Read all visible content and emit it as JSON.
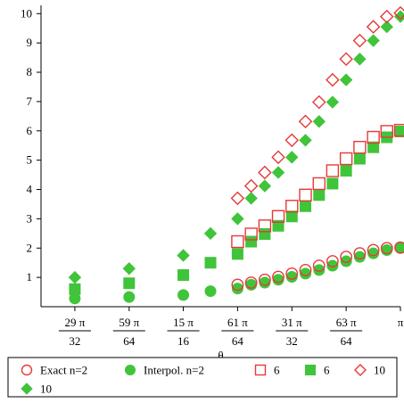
{
  "chart_data": {
    "type": "scatter",
    "xlabel": "θ",
    "ylabel": "",
    "title": "",
    "x": [
      2.8471,
      2.8962,
      2.9452,
      2.9943,
      3.0434,
      3.068,
      3.0925,
      3.1048,
      3.1171,
      3.1293,
      3.1416
    ],
    "x_ticks": [
      {
        "value": 2.8471,
        "num": "29 π",
        "den": "32"
      },
      {
        "value": 2.8962,
        "num": "59 π",
        "den": "64"
      },
      {
        "value": 2.9452,
        "num": "15 π",
        "den": "16"
      },
      {
        "value": 2.9943,
        "num": "61 π",
        "den": "64"
      },
      {
        "value": 3.0434,
        "num": "31 π",
        "den": "32"
      },
      {
        "value": 3.0925,
        "num": "63 π",
        "den": "64"
      },
      {
        "value": 3.1416,
        "num": "π",
        "den": ""
      }
    ],
    "y_ticks": [
      {
        "value": 1,
        "label": "1"
      },
      {
        "value": 2,
        "label": "2"
      },
      {
        "value": 3,
        "label": "3"
      },
      {
        "value": 4,
        "label": "4"
      },
      {
        "value": 5,
        "label": "5"
      },
      {
        "value": 6,
        "label": "6"
      },
      {
        "value": 7,
        "label": "7"
      },
      {
        "value": 8,
        "label": "8"
      },
      {
        "value": 9,
        "label": "9"
      },
      {
        "value": 10,
        "label": "10"
      }
    ],
    "xlim": [
      2.8165,
      3.1416
    ],
    "ylim": [
      0,
      10.1
    ],
    "grid": false,
    "legend_position": "bottom",
    "colors": {
      "exact": "#e8383a",
      "interp": "#40c43a",
      "axis": "#000000"
    },
    "series": [
      {
        "name": "Exact n=2",
        "marker": "circle",
        "filled": false,
        "x": [
          2.9943,
          3.0066,
          3.0189,
          3.0311,
          3.0434,
          3.0557,
          3.068,
          3.0802,
          3.0925,
          3.1048,
          3.1171,
          3.1293,
          3.1416
        ],
        "values": [
          0.75,
          0.82,
          0.92,
          1.02,
          1.13,
          1.25,
          1.4,
          1.55,
          1.7,
          1.82,
          1.93,
          2.0,
          2.02
        ]
      },
      {
        "name": "Interpol. n=2",
        "marker": "circle",
        "filled": true,
        "x": [
          2.8471,
          2.8962,
          2.9452,
          2.9698,
          2.9943,
          3.0066,
          3.0189,
          3.0311,
          3.0434,
          3.0557,
          3.068,
          3.0802,
          3.0925,
          3.1048,
          3.1171,
          3.1293,
          3.1416
        ],
        "values": [
          0.28,
          0.33,
          0.4,
          0.53,
          0.62,
          0.75,
          0.82,
          0.92,
          1.02,
          1.13,
          1.25,
          1.4,
          1.55,
          1.7,
          1.82,
          1.93,
          2.0
        ]
      },
      {
        "name": "6",
        "marker": "square",
        "filled": false,
        "x": [
          2.9943,
          3.0066,
          3.0189,
          3.0311,
          3.0434,
          3.0557,
          3.068,
          3.0802,
          3.0925,
          3.1048,
          3.1171,
          3.1293,
          3.1416
        ],
        "values": [
          2.22,
          2.48,
          2.76,
          3.08,
          3.43,
          3.81,
          4.2,
          4.64,
          5.05,
          5.44,
          5.78,
          5.98,
          6.02
        ]
      },
      {
        "name": "6",
        "marker": "square",
        "filled": true,
        "x": [
          2.8471,
          2.8962,
          2.9452,
          2.9698,
          2.9943,
          3.0066,
          3.0189,
          3.0311,
          3.0434,
          3.0557,
          3.068,
          3.0802,
          3.0925,
          3.1048,
          3.1171,
          3.1293,
          3.1416
        ],
        "values": [
          0.6,
          0.8,
          1.08,
          1.5,
          1.8,
          2.22,
          2.48,
          2.76,
          3.08,
          3.43,
          3.81,
          4.2,
          4.64,
          5.05,
          5.44,
          5.78,
          5.98
        ]
      },
      {
        "name": "10",
        "marker": "diamond",
        "filled": false,
        "x": [
          2.9943,
          3.0066,
          3.0189,
          3.0311,
          3.0434,
          3.0557,
          3.068,
          3.0802,
          3.0925,
          3.1048,
          3.1171,
          3.1293,
          3.1416
        ],
        "values": [
          3.7,
          4.12,
          4.58,
          5.1,
          5.68,
          6.32,
          6.98,
          7.74,
          8.45,
          9.08,
          9.55,
          9.9,
          10.02
        ]
      },
      {
        "name": "10",
        "marker": "diamond",
        "filled": true,
        "x": [
          2.8471,
          2.8962,
          2.9452,
          2.9698,
          2.9943,
          3.0066,
          3.0189,
          3.0311,
          3.0434,
          3.0557,
          3.068,
          3.0802,
          3.0925,
          3.1048,
          3.1171,
          3.1293,
          3.1416
        ],
        "values": [
          1.0,
          1.3,
          1.75,
          2.5,
          3.0,
          3.7,
          4.12,
          4.58,
          5.1,
          5.68,
          6.32,
          6.98,
          7.74,
          8.45,
          9.08,
          9.55,
          9.9
        ]
      }
    ],
    "legend": [
      {
        "label": "Exact n=2",
        "marker": "circle",
        "filled": false
      },
      {
        "label": "Interpol. n=2",
        "marker": "circle",
        "filled": true
      },
      {
        "label": "6",
        "marker": "square",
        "filled": false
      },
      {
        "label": "6",
        "marker": "square",
        "filled": true
      },
      {
        "label": "10",
        "marker": "diamond",
        "filled": false
      },
      {
        "label": "10",
        "marker": "diamond",
        "filled": true
      }
    ]
  }
}
